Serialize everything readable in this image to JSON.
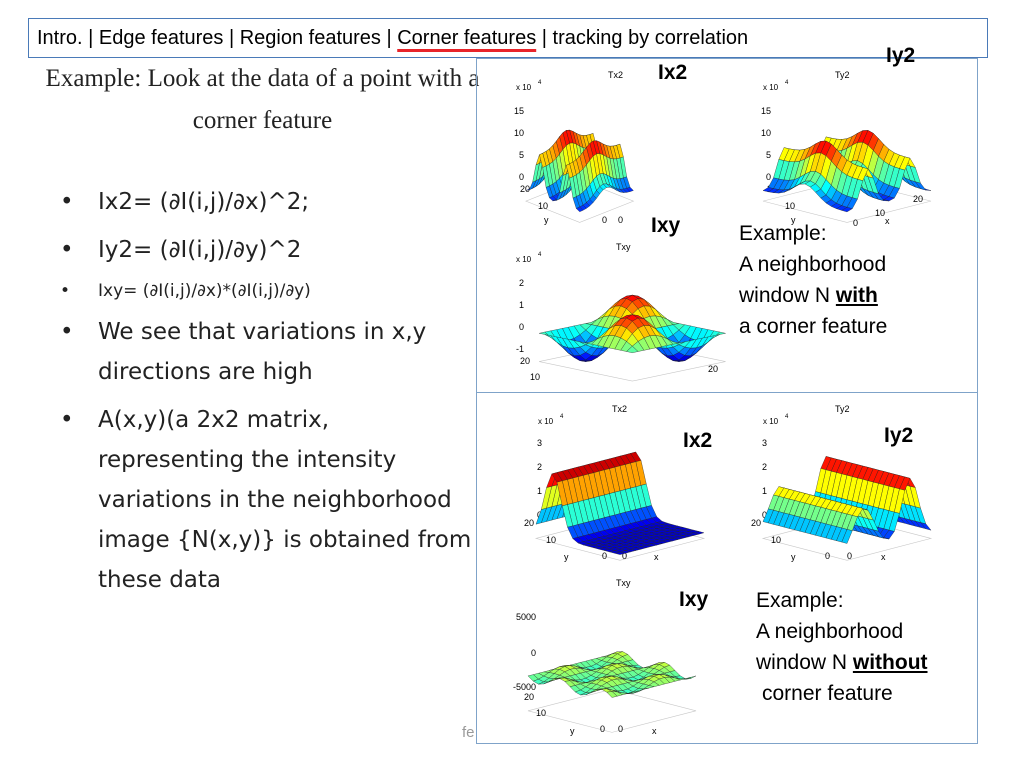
{
  "nav": {
    "items": [
      "Intro. | Edge features | Region features | ",
      "Corner features",
      " | tracking by correlation"
    ]
  },
  "slide": {
    "title": "Example: Look at the data of a point with a corner feature",
    "bullets": [
      "Ix2= (∂I(i,j)/∂x)^2;",
      "Iy2= (∂I(i,j)/∂y)^2",
      "Ixy= (∂I(i,j)/∂x)*(∂I(i,j)/∂y)",
      "We see that variations in x,y directions are high",
      "A(x,y)(a 2x2 matrix, representing the intensity variations in the neighborhood image {N(x,y)} is obtained from these data"
    ]
  },
  "panel_with": {
    "label_ix2": "Ix2",
    "label_iy2": "Iy2",
    "label_ixy": "Ixy",
    "note_line1": "Example:",
    "note_line2": "A neighborhood",
    "note_line3_prefix": "window N ",
    "note_line3_bold": "with",
    "note_line4": "a corner feature",
    "plots": [
      {
        "title": "Tx2",
        "exp": "x 10",
        "exp_sup": "4",
        "z_ticks": [
          "15",
          "10",
          "5",
          "0"
        ]
      },
      {
        "title": "Ty2",
        "exp": "x 10",
        "exp_sup": "4",
        "z_ticks": [
          "15",
          "10",
          "5",
          "0"
        ]
      },
      {
        "title": "Txy",
        "exp": "x 10",
        "exp_sup": "4",
        "z_ticks": [
          "2",
          "1",
          "0",
          "-1"
        ]
      }
    ]
  },
  "panel_without": {
    "label_ix2": "Ix2",
    "label_iy2": "Iy2",
    "label_ixy": "Ixy",
    "note_line1": "Example:",
    "note_line2": "A neighborhood",
    "note_line3_prefix": "window N ",
    "note_line3_bold": "without",
    "note_line4": "corner feature",
    "plots": [
      {
        "title": "Tx2",
        "exp": "x 10",
        "exp_sup": "4",
        "z_ticks": [
          "3",
          "2",
          "1",
          "0"
        ]
      },
      {
        "title": "Ty2",
        "exp": "x 10",
        "exp_sup": "4",
        "z_ticks": [
          "3",
          "2",
          "1",
          "0"
        ]
      },
      {
        "title": "Txy",
        "exp": "",
        "exp_sup": "",
        "z_ticks": [
          "5000",
          "0",
          "-5000"
        ]
      }
    ]
  },
  "axes": {
    "y_label": "y",
    "x_label": "x",
    "tick_20": "20",
    "tick_10": "10",
    "tick_0": "0"
  },
  "footer": {
    "text": "fe"
  },
  "colors": {
    "nav_border": "#4a7ab8",
    "nav_underline": "#e8242a",
    "panel_border": "#7fa3c9"
  }
}
